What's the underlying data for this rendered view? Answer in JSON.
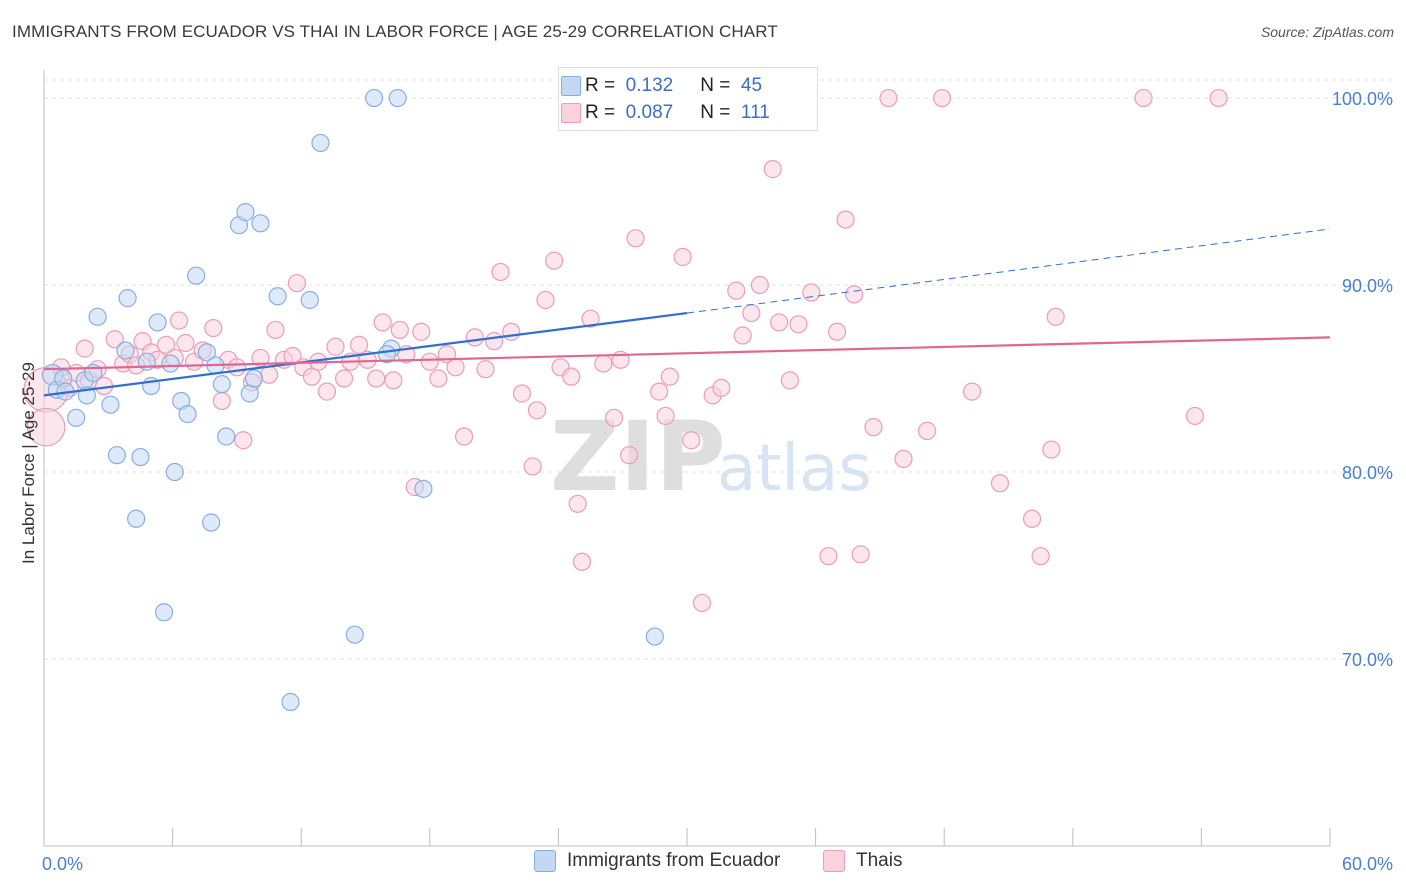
{
  "title": "IMMIGRANTS FROM ECUADOR VS THAI IN LABOR FORCE | AGE 25-29 CORRELATION CHART",
  "source": "Source: ZipAtlas.com",
  "watermark": {
    "zip": "ZIP",
    "atlas": "atlas"
  },
  "legend_top": [
    {
      "r_label": "R =",
      "r_value": "0.132",
      "n_label": "N =",
      "n_value": "45"
    },
    {
      "r_label": "R =",
      "r_value": "0.087",
      "n_label": "N =",
      "n_value": "111"
    }
  ],
  "colors": {
    "ecuador_fill": "#c5d8f3",
    "ecuador_stroke": "#87aee3",
    "ecuador_line": "#2f6fcf",
    "thai_fill": "#f9d2de",
    "thai_stroke": "#eb9cb7",
    "thai_line": "#e06792",
    "tick_label": "#4a7fd0",
    "grid": "#e2e2e2"
  },
  "chart_data": {
    "type": "scatter",
    "title": "IMMIGRANTS FROM ECUADOR VS THAI IN LABOR FORCE | AGE 25-29 CORRELATION CHART",
    "xlabel": "",
    "ylabel": "In Labor Force | Age 25-29",
    "xlim": [
      0,
      60
    ],
    "ylim": [
      60,
      101.5
    ],
    "x_tick_labels": [
      "0.0%",
      "60.0%"
    ],
    "y_ticks": [
      70,
      80,
      90,
      100
    ],
    "y_tick_labels": [
      "70.0%",
      "80.0%",
      "90.0%",
      "100.0%"
    ],
    "grid": "horizontal dashed",
    "legend_position": "top-center",
    "series": [
      {
        "name": "Immigrants from Ecuador",
        "r": 0.132,
        "n": 45,
        "trend": {
          "x": [
            0,
            30
          ],
          "y": [
            84.1,
            88.5
          ],
          "dashed_extension": {
            "x": [
              30,
              60
            ],
            "y": [
              88.5,
              93.0
            ]
          }
        },
        "points": [
          [
            0.4,
            85.2,
            1.2
          ],
          [
            0.6,
            84.4,
            1
          ],
          [
            0.9,
            85.0,
            1
          ],
          [
            1.0,
            84.3,
            1
          ],
          [
            1.5,
            82.9,
            1
          ],
          [
            1.9,
            84.9,
            1
          ],
          [
            2.0,
            84.1,
            1
          ],
          [
            2.3,
            85.3,
            1
          ],
          [
            2.5,
            88.3,
            1
          ],
          [
            3.1,
            83.6,
            1
          ],
          [
            3.4,
            80.9,
            1
          ],
          [
            3.8,
            86.5,
            1
          ],
          [
            3.9,
            89.3,
            1
          ],
          [
            4.3,
            77.5,
            1
          ],
          [
            4.5,
            80.8,
            1
          ],
          [
            4.8,
            85.9,
            1
          ],
          [
            5.0,
            84.6,
            1
          ],
          [
            5.3,
            88.0,
            1
          ],
          [
            5.6,
            72.5,
            1
          ],
          [
            5.9,
            85.8,
            1
          ],
          [
            6.1,
            80.0,
            1
          ],
          [
            6.4,
            83.8,
            1
          ],
          [
            6.7,
            83.1,
            1
          ],
          [
            7.1,
            90.5,
            1
          ],
          [
            7.6,
            86.4,
            1
          ],
          [
            7.8,
            77.3,
            1
          ],
          [
            8.0,
            85.7,
            1
          ],
          [
            8.3,
            84.7,
            1
          ],
          [
            8.5,
            81.9,
            1
          ],
          [
            9.1,
            93.2,
            1
          ],
          [
            9.4,
            93.9,
            1
          ],
          [
            9.6,
            84.2,
            1
          ],
          [
            9.8,
            85.0,
            1
          ],
          [
            10.1,
            93.3,
            1
          ],
          [
            10.9,
            89.4,
            1
          ],
          [
            11.5,
            67.7,
            1
          ],
          [
            12.4,
            89.2,
            1
          ],
          [
            12.9,
            97.6,
            1
          ],
          [
            14.5,
            71.3,
            1
          ],
          [
            15.4,
            100.0,
            1
          ],
          [
            16.2,
            86.6,
            1
          ],
          [
            16.5,
            100.0,
            1
          ],
          [
            17.7,
            79.1,
            1
          ],
          [
            28.5,
            71.2,
            1
          ],
          [
            16.0,
            86.3,
            1
          ]
        ]
      },
      {
        "name": "Thais",
        "r": 0.087,
        "n": 111,
        "trend": {
          "x": [
            0,
            60
          ],
          "y": [
            85.5,
            87.2
          ]
        },
        "points": [
          [
            0.1,
            84.4,
            2.6
          ],
          [
            0.1,
            82.4,
            2.2
          ],
          [
            0.8,
            85.6,
            1
          ],
          [
            1.2,
            84.5,
            1
          ],
          [
            1.5,
            85.3,
            1
          ],
          [
            1.9,
            86.6,
            1
          ],
          [
            2.1,
            84.9,
            1
          ],
          [
            2.5,
            85.5,
            1
          ],
          [
            2.8,
            84.6,
            1
          ],
          [
            3.3,
            87.1,
            1
          ],
          [
            3.7,
            85.8,
            1
          ],
          [
            4.0,
            86.3,
            1
          ],
          [
            4.3,
            85.7,
            1
          ],
          [
            4.6,
            87.0,
            1
          ],
          [
            5.0,
            86.4,
            1
          ],
          [
            5.3,
            86.0,
            1
          ],
          [
            5.7,
            86.8,
            1
          ],
          [
            6.1,
            86.1,
            1
          ],
          [
            6.3,
            88.1,
            1
          ],
          [
            6.6,
            86.9,
            1
          ],
          [
            7.0,
            85.9,
            1
          ],
          [
            7.4,
            86.5,
            1
          ],
          [
            7.9,
            87.7,
            1
          ],
          [
            8.3,
            83.8,
            1
          ],
          [
            8.6,
            86.0,
            1
          ],
          [
            9.0,
            85.6,
            1
          ],
          [
            9.3,
            81.7,
            1
          ],
          [
            9.7,
            84.8,
            1
          ],
          [
            10.1,
            86.1,
            1
          ],
          [
            10.5,
            85.2,
            1
          ],
          [
            10.8,
            87.6,
            1
          ],
          [
            11.2,
            86.0,
            1
          ],
          [
            11.6,
            86.2,
            1
          ],
          [
            11.8,
            90.1,
            1
          ],
          [
            12.1,
            85.6,
            1
          ],
          [
            12.5,
            85.1,
            1
          ],
          [
            12.8,
            85.9,
            1
          ],
          [
            13.2,
            84.3,
            1
          ],
          [
            13.6,
            86.7,
            1
          ],
          [
            14.0,
            85.0,
            1
          ],
          [
            14.3,
            85.9,
            1
          ],
          [
            14.7,
            86.8,
            1
          ],
          [
            15.1,
            86.0,
            1
          ],
          [
            15.5,
            85.0,
            1
          ],
          [
            15.8,
            88.0,
            1
          ],
          [
            16.3,
            84.9,
            1
          ],
          [
            16.6,
            87.6,
            1
          ],
          [
            16.9,
            86.3,
            1
          ],
          [
            17.3,
            79.2,
            1
          ],
          [
            17.6,
            87.5,
            1
          ],
          [
            18.0,
            85.9,
            1
          ],
          [
            18.4,
            85.0,
            1
          ],
          [
            18.8,
            86.3,
            1
          ],
          [
            19.2,
            85.6,
            1
          ],
          [
            19.6,
            81.9,
            1
          ],
          [
            20.1,
            87.2,
            1
          ],
          [
            20.6,
            85.5,
            1
          ],
          [
            21.0,
            87.0,
            1
          ],
          [
            21.3,
            90.7,
            1
          ],
          [
            21.8,
            87.5,
            1
          ],
          [
            22.3,
            84.2,
            1
          ],
          [
            22.8,
            80.3,
            1
          ],
          [
            23.0,
            83.3,
            1
          ],
          [
            23.4,
            89.2,
            1
          ],
          [
            23.8,
            91.3,
            1
          ],
          [
            24.1,
            85.6,
            1
          ],
          [
            24.6,
            85.1,
            1
          ],
          [
            24.9,
            78.3,
            1
          ],
          [
            25.1,
            75.2,
            1
          ],
          [
            25.5,
            88.2,
            1
          ],
          [
            26.1,
            85.8,
            1
          ],
          [
            26.6,
            82.9,
            1
          ],
          [
            26.9,
            86.0,
            1
          ],
          [
            27.3,
            80.9,
            1
          ],
          [
            27.6,
            92.5,
            1
          ],
          [
            28.7,
            84.3,
            1
          ],
          [
            29.0,
            83.0,
            1
          ],
          [
            29.2,
            85.1,
            1
          ],
          [
            29.8,
            91.5,
            1
          ],
          [
            30.2,
            81.7,
            1
          ],
          [
            30.7,
            73.0,
            1
          ],
          [
            31.2,
            84.1,
            1
          ],
          [
            31.6,
            84.5,
            1
          ],
          [
            32.3,
            89.7,
            1
          ],
          [
            32.6,
            87.3,
            1
          ],
          [
            33.0,
            88.5,
            1
          ],
          [
            33.4,
            90.0,
            1
          ],
          [
            34.0,
            96.2,
            1
          ],
          [
            34.3,
            88.0,
            1
          ],
          [
            34.8,
            84.9,
            1
          ],
          [
            35.2,
            87.9,
            1
          ],
          [
            35.8,
            89.6,
            1
          ],
          [
            36.6,
            75.5,
            1
          ],
          [
            37.0,
            87.5,
            1
          ],
          [
            37.4,
            93.5,
            1
          ],
          [
            37.8,
            89.5,
            1
          ],
          [
            38.1,
            75.6,
            1
          ],
          [
            38.7,
            82.4,
            1
          ],
          [
            39.4,
            100.0,
            1
          ],
          [
            40.1,
            80.7,
            1
          ],
          [
            41.2,
            82.2,
            1
          ],
          [
            41.9,
            100.0,
            1
          ],
          [
            43.3,
            84.3,
            1
          ],
          [
            44.6,
            79.4,
            1
          ],
          [
            46.1,
            77.5,
            1
          ],
          [
            46.5,
            75.5,
            1
          ],
          [
            47.0,
            81.2,
            1
          ],
          [
            47.2,
            88.3,
            1
          ],
          [
            51.3,
            100.0,
            1
          ],
          [
            53.7,
            83.0,
            1
          ],
          [
            54.8,
            100.0,
            1
          ]
        ]
      }
    ]
  }
}
